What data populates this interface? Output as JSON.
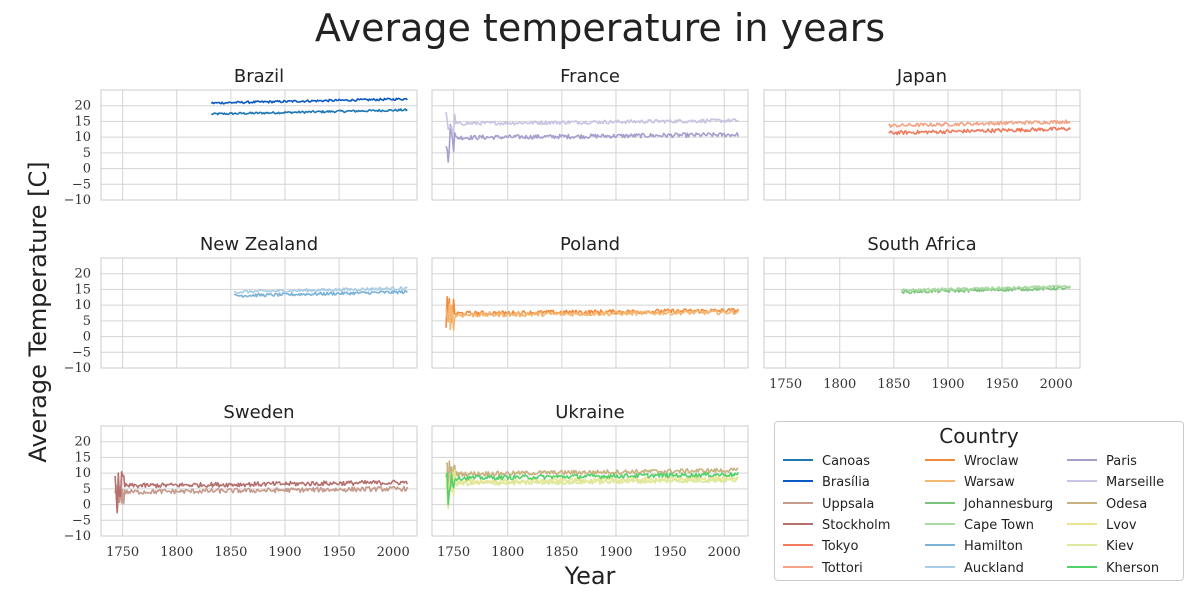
{
  "chart_data": {
    "type": "line",
    "title": "Average temperature in years",
    "xlabel": "Year",
    "ylabel": "Average Temperature [C]",
    "xlim": [
      1730,
      2022
    ],
    "ylim": [
      -10,
      25
    ],
    "xticks": [
      1750,
      1800,
      1850,
      1900,
      1950,
      2000
    ],
    "yticks": [
      -10,
      -5,
      0,
      5,
      10,
      15,
      20
    ],
    "grid": true,
    "legend": {
      "title": "Country",
      "placement": "bottom-right",
      "columns": 3
    },
    "panels": [
      {
        "title": "Brazil",
        "series": [
          {
            "name": "Canoas",
            "color": "#1f77b4",
            "start_year": 1832,
            "end_year": 2013,
            "mean": 18.0,
            "trend": 1.3,
            "noise": 0.35
          },
          {
            "name": "Brasília",
            "color": "#0b5ac4",
            "start_year": 1832,
            "end_year": 2013,
            "mean": 21.5,
            "trend": 1.3,
            "noise": 0.35
          }
        ]
      },
      {
        "title": "France",
        "series": [
          {
            "name": "Paris",
            "color": "#a59fce",
            "start_year": 1743,
            "end_year": 2013,
            "mean": 10.3,
            "trend": 1.0,
            "noise": 0.7
          },
          {
            "name": "Marseille",
            "color": "#c8c4e2",
            "start_year": 1743,
            "end_year": 2013,
            "mean": 14.8,
            "trend": 1.0,
            "noise": 0.6
          }
        ]
      },
      {
        "title": "Japan",
        "series": [
          {
            "name": "Tokyo",
            "color": "#ef7a5c",
            "start_year": 1845,
            "end_year": 2013,
            "mean": 12.0,
            "trend": 1.3,
            "noise": 0.6
          },
          {
            "name": "Tottori",
            "color": "#f4a384",
            "start_year": 1845,
            "end_year": 2013,
            "mean": 14.3,
            "trend": 1.3,
            "noise": 0.55
          }
        ]
      },
      {
        "title": "New Zealand",
        "series": [
          {
            "name": "Hamilton",
            "color": "#7db3d8",
            "start_year": 1853,
            "end_year": 2013,
            "mean": 13.6,
            "trend": 1.2,
            "noise": 0.5
          },
          {
            "name": "Auckland",
            "color": "#aacde6",
            "start_year": 1853,
            "end_year": 2013,
            "mean": 14.8,
            "trend": 1.2,
            "noise": 0.5
          }
        ]
      },
      {
        "title": "Poland",
        "series": [
          {
            "name": "Wroclaw",
            "color": "#f28a3c",
            "start_year": 1743,
            "end_year": 2013,
            "mean": 7.8,
            "trend": 1.0,
            "noise": 0.7
          },
          {
            "name": "Warsaw",
            "color": "#f5b66f",
            "start_year": 1743,
            "end_year": 2013,
            "mean": 7.3,
            "trend": 1.0,
            "noise": 0.7
          }
        ]
      },
      {
        "title": "South Africa",
        "series": [
          {
            "name": "Johannesburg",
            "color": "#7cc47b",
            "start_year": 1857,
            "end_year": 2013,
            "mean": 14.8,
            "trend": 1.2,
            "noise": 0.5
          },
          {
            "name": "Cape Town",
            "color": "#a8d9a1",
            "start_year": 1857,
            "end_year": 2013,
            "mean": 15.3,
            "trend": 1.2,
            "noise": 0.45
          }
        ]
      },
      {
        "title": "Sweden",
        "series": [
          {
            "name": "Uppsala",
            "color": "#c69a8c",
            "start_year": 1743,
            "end_year": 2013,
            "mean": 4.5,
            "trend": 1.1,
            "noise": 0.75
          },
          {
            "name": "Stockholm",
            "color": "#b5706e",
            "start_year": 1743,
            "end_year": 2013,
            "mean": 6.5,
            "trend": 1.1,
            "noise": 0.75
          }
        ]
      },
      {
        "title": "Ukraine",
        "series": [
          {
            "name": "Odesa",
            "color": "#c9b27f",
            "start_year": 1743,
            "end_year": 2013,
            "mean": 10.3,
            "trend": 1.2,
            "noise": 0.7
          },
          {
            "name": "Lvov",
            "color": "#ece492",
            "start_year": 1743,
            "end_year": 2013,
            "mean": 7.8,
            "trend": 1.2,
            "noise": 0.7
          },
          {
            "name": "Kiev",
            "color": "#dde89a",
            "start_year": 1743,
            "end_year": 2013,
            "mean": 7.2,
            "trend": 1.2,
            "noise": 0.7
          },
          {
            "name": "Kherson",
            "color": "#55d16a",
            "start_year": 1743,
            "end_year": 2013,
            "mean": 9.0,
            "trend": 1.2,
            "noise": 0.7
          }
        ]
      }
    ],
    "legend_order": [
      [
        "Canoas",
        "Brasília",
        "Uppsala",
        "Stockholm",
        "Tokyo",
        "Tottori"
      ],
      [
        "Wroclaw",
        "Warsaw",
        "Johannesburg",
        "Cape Town",
        "Hamilton",
        "Auckland"
      ],
      [
        "Paris",
        "Marseille",
        "Odesa",
        "Lvov",
        "Kiev",
        "Kherson"
      ]
    ]
  }
}
